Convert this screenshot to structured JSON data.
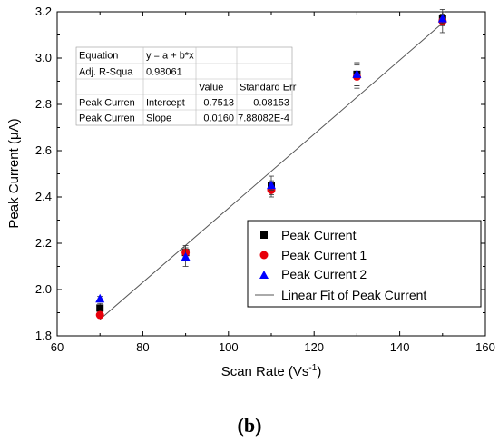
{
  "chart_data": {
    "type": "scatter",
    "xlabel": "Scan Rate (Vs",
    "xlabel_sup": "-1",
    "xlabel_close": ")",
    "ylabel": "Peak Current (μA)",
    "xlim": [
      60,
      160
    ],
    "ylim": [
      1.8,
      3.2
    ],
    "x_ticks": [
      "60",
      "80",
      "100",
      "120",
      "140",
      "160"
    ],
    "y_ticks": [
      "1.8",
      "2.0",
      "2.2",
      "2.4",
      "2.6",
      "2.8",
      "3.0",
      "3.2"
    ],
    "x": [
      70,
      90,
      110,
      130,
      150
    ],
    "series": [
      {
        "name": "Peak Current",
        "marker": "square",
        "color": "#000000",
        "values": [
          1.92,
          2.16,
          2.45,
          2.93,
          3.17
        ],
        "errors": [
          0.02,
          0.03,
          0.04,
          0.05,
          0.03
        ]
      },
      {
        "name": "Peak Current 1",
        "marker": "circle",
        "color": "#e8000b",
        "values": [
          1.89,
          2.16,
          2.43,
          2.92,
          3.16
        ],
        "errors": [
          0.01,
          0.02,
          0.03,
          0.05,
          0.05
        ]
      },
      {
        "name": "Peak Current 2",
        "marker": "triangle",
        "color": "#0000ff",
        "values": [
          1.96,
          2.14,
          2.45,
          2.93,
          3.17
        ],
        "errors": [
          0.01,
          0.04,
          0.02,
          0.05,
          0.02
        ]
      }
    ],
    "fit": {
      "name": "Linear Fit of Peak Current",
      "color": "#555555",
      "intercept": 0.7513,
      "slope": 0.016,
      "x_range": [
        70,
        150
      ]
    },
    "fit_table": [
      [
        "Equation",
        "y = a + b*x",
        "",
        ""
      ],
      [
        "Adj. R-Squa",
        "0.98061",
        "",
        ""
      ],
      [
        "",
        "",
        "Value",
        "Standard Err"
      ],
      [
        "Peak Curren",
        "Intercept",
        "0.7513",
        "0.08153"
      ],
      [
        "Peak Curren",
        "Slope",
        "0.0160",
        "7.88082E-4"
      ]
    ],
    "legend_position": "bottom-right",
    "grid": false
  },
  "panel_label": "(b)"
}
